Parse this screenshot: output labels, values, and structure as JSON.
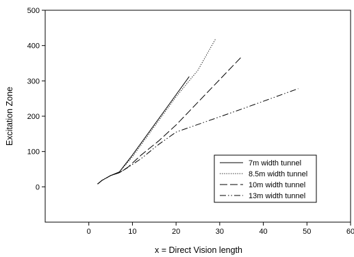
{
  "chart_data": {
    "type": "line",
    "xlabel": "x = Direct Vision length",
    "ylabel": "Excitation Zone",
    "xlim": [
      -10,
      60
    ],
    "ylim": [
      -100,
      500
    ],
    "xticks": [
      0,
      10,
      20,
      30,
      40,
      50,
      60
    ],
    "yticks": [
      0,
      100,
      200,
      300,
      400,
      500
    ],
    "grid": false,
    "legend_position": "lower-right",
    "series": [
      {
        "name": "7m width tunnel",
        "dash": "solid",
        "points": [
          [
            2,
            8
          ],
          [
            3,
            18
          ],
          [
            5,
            32
          ],
          [
            7,
            42
          ],
          [
            10,
            90
          ],
          [
            23,
            312
          ]
        ]
      },
      {
        "name": "8.5m width tunnel",
        "dash": "dotted",
        "points": [
          [
            2,
            8
          ],
          [
            3,
            18
          ],
          [
            5,
            32
          ],
          [
            7,
            42
          ],
          [
            10,
            85
          ],
          [
            20,
            255
          ],
          [
            25,
            330
          ],
          [
            29,
            418
          ]
        ]
      },
      {
        "name": "10m width tunnel",
        "dash": "long-dash",
        "points": [
          [
            2,
            8
          ],
          [
            3,
            18
          ],
          [
            5,
            32
          ],
          [
            7,
            40
          ],
          [
            9,
            56
          ],
          [
            12,
            90
          ],
          [
            16,
            130
          ],
          [
            20,
            175
          ],
          [
            35,
            368
          ]
        ]
      },
      {
        "name": "13m  width tunnel",
        "dash": "dash-dot-dot",
        "points": [
          [
            2,
            8
          ],
          [
            3,
            18
          ],
          [
            5,
            32
          ],
          [
            7,
            40
          ],
          [
            9,
            55
          ],
          [
            12,
            80
          ],
          [
            16,
            120
          ],
          [
            20,
            155
          ],
          [
            35,
            220
          ],
          [
            48,
            278
          ]
        ]
      }
    ]
  }
}
